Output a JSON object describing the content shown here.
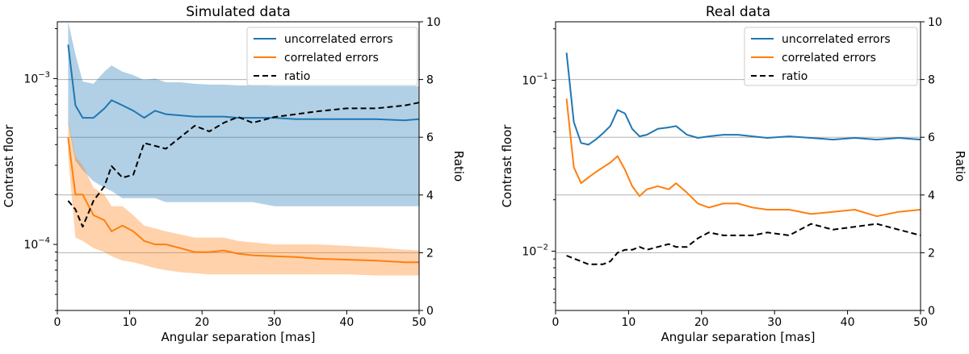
{
  "chart_data": [
    {
      "type": "line",
      "title": "Simulated data",
      "xlabel": "Angular separation [mas]",
      "ylabel": "Contrast floor",
      "y2label": "Ratio",
      "xlim": [
        0,
        50
      ],
      "ylim": [
        4e-05,
        0.0022
      ],
      "yscale": "log",
      "y2lim": [
        0,
        10
      ],
      "x_ticks": [
        "0",
        "10",
        "20",
        "30",
        "40",
        "50"
      ],
      "y_ticks": [
        {
          "value": 0.001,
          "base": "10",
          "exp": "−3"
        },
        {
          "value": 0.0001,
          "base": "10",
          "exp": "−4"
        }
      ],
      "y2_ticks": [
        "0",
        "2",
        "4",
        "6",
        "8",
        "10"
      ],
      "grid": "y2-major",
      "legend_position": "top-right",
      "series": [
        {
          "name": "uncorrelated errors",
          "color": "#1f77b4",
          "axis": "left",
          "x": [
            1.5,
            2.5,
            3.5,
            5,
            6.5,
            7.5,
            9,
            10.5,
            12,
            13.5,
            15,
            17,
            19,
            21,
            23,
            25,
            27,
            30,
            33,
            36,
            40,
            44,
            48,
            50
          ],
          "values": [
            0.0016,
            0.00069,
            0.00058,
            0.00058,
            0.00066,
            0.00074,
            0.00069,
            0.00064,
            0.00058,
            0.00064,
            0.00061,
            0.0006,
            0.00059,
            0.00059,
            0.00059,
            0.00058,
            0.00058,
            0.00058,
            0.00057,
            0.00057,
            0.00057,
            0.00057,
            0.00056,
            0.00057
          ],
          "band_upper": [
            0.0022,
            0.0014,
            0.00096,
            0.00093,
            0.0011,
            0.0012,
            0.0011,
            0.00105,
            0.00098,
            0.001,
            0.00095,
            0.00095,
            0.00093,
            0.00092,
            0.00092,
            0.00091,
            0.00091,
            0.0009,
            0.0009,
            0.0009,
            0.0009,
            0.0009,
            0.0009,
            0.0009
          ],
          "band_lower": [
            0.00054,
            0.00032,
            0.00028,
            0.00024,
            0.00022,
            0.00021,
            0.00019,
            0.00019,
            0.00019,
            0.00019,
            0.00018,
            0.00018,
            0.00018,
            0.00018,
            0.00018,
            0.00018,
            0.00018,
            0.00017,
            0.00017,
            0.00017,
            0.00017,
            0.00017,
            0.00017,
            0.00017
          ]
        },
        {
          "name": "correlated errors",
          "color": "#ff7f0e",
          "axis": "left",
          "x": [
            1.5,
            2.5,
            3.5,
            5,
            6.5,
            7.5,
            9,
            10.5,
            12,
            13.5,
            15,
            17,
            19,
            21,
            23,
            25,
            27,
            30,
            33,
            36,
            40,
            44,
            48,
            50
          ],
          "values": [
            0.00044,
            0.0002,
            0.0002,
            0.00015,
            0.00014,
            0.00012,
            0.00013,
            0.00012,
            0.000105,
            0.0001,
            0.0001,
            9.5e-05,
            9e-05,
            9e-05,
            9.2e-05,
            8.8e-05,
            8.6e-05,
            8.5e-05,
            8.4e-05,
            8.2e-05,
            8.1e-05,
            8e-05,
            7.8e-05,
            7.8e-05
          ],
          "band_upper": [
            0.00056,
            0.00034,
            0.0003,
            0.00022,
            0.0002,
            0.00017,
            0.00017,
            0.00015,
            0.00013,
            0.000125,
            0.00012,
            0.000115,
            0.00011,
            0.00011,
            0.00011,
            0.000105,
            0.000103,
            0.0001,
            0.0001,
            0.0001,
            9.8e-05,
            9.6e-05,
            9.3e-05,
            9.2e-05
          ],
          "band_lower": [
            0.00034,
            0.00011,
            0.000105,
            9.5e-05,
            9e-05,
            8.5e-05,
            8e-05,
            7.8e-05,
            7.5e-05,
            7.2e-05,
            7e-05,
            6.8e-05,
            6.7e-05,
            6.6e-05,
            6.6e-05,
            6.6e-05,
            6.6e-05,
            6.6e-05,
            6.6e-05,
            6.6e-05,
            6.6e-05,
            6.5e-05,
            6.5e-05,
            6.5e-05
          ]
        },
        {
          "name": "ratio",
          "color": "#000000",
          "dash": "dashed",
          "axis": "right",
          "x": [
            1.5,
            2.5,
            3.5,
            5,
            6.5,
            7.5,
            9,
            10.5,
            12,
            13.5,
            15,
            17,
            19,
            21,
            23,
            25,
            27,
            30,
            33,
            36,
            40,
            44,
            48,
            50
          ],
          "values": [
            3.8,
            3.5,
            2.9,
            3.8,
            4.3,
            5.0,
            4.6,
            4.7,
            5.8,
            5.7,
            5.6,
            6.0,
            6.4,
            6.2,
            6.5,
            6.7,
            6.5,
            6.7,
            6.8,
            6.9,
            7.0,
            7.0,
            7.1,
            7.2
          ]
        }
      ]
    },
    {
      "type": "line",
      "title": "Real data",
      "xlabel": "Angular separation [mas]",
      "ylabel": "Contrast floor",
      "y2label": "Ratio",
      "xlim": [
        0,
        50
      ],
      "ylim": [
        0.0045,
        0.22
      ],
      "yscale": "log",
      "y2lim": [
        0,
        10
      ],
      "x_ticks": [
        "0",
        "10",
        "20",
        "30",
        "40",
        "50"
      ],
      "y_ticks": [
        {
          "value": 0.1,
          "base": "10",
          "exp": "−1"
        },
        {
          "value": 0.01,
          "base": "10",
          "exp": "−2"
        }
      ],
      "y2_ticks": [
        "0",
        "2",
        "4",
        "6",
        "8",
        "10"
      ],
      "grid": "y2-major",
      "legend_position": "top-right",
      "series": [
        {
          "name": "uncorrelated errors",
          "color": "#1f77b4",
          "axis": "left",
          "x": [
            1.5,
            2.5,
            3.5,
            4.5,
            5.5,
            6.5,
            7.5,
            8.5,
            9.5,
            10.5,
            11.5,
            12.5,
            14,
            15.5,
            16.5,
            18,
            19.5,
            21,
            23,
            25,
            27,
            29,
            32,
            35,
            38,
            41,
            44,
            47,
            50
          ],
          "values": [
            0.145,
            0.057,
            0.043,
            0.042,
            0.045,
            0.049,
            0.054,
            0.067,
            0.064,
            0.052,
            0.047,
            0.048,
            0.052,
            0.053,
            0.054,
            0.048,
            0.046,
            0.047,
            0.048,
            0.048,
            0.047,
            0.046,
            0.047,
            0.046,
            0.045,
            0.046,
            0.045,
            0.046,
            0.045
          ]
        },
        {
          "name": "correlated errors",
          "color": "#ff7f0e",
          "axis": "left",
          "x": [
            1.5,
            2.5,
            3.5,
            4.5,
            5.5,
            6.5,
            7.5,
            8.5,
            9.5,
            10.5,
            11.5,
            12.5,
            14,
            15.5,
            16.5,
            18,
            19.5,
            21,
            23,
            25,
            27,
            29,
            32,
            35,
            38,
            41,
            44,
            47,
            50
          ],
          "values": [
            0.078,
            0.031,
            0.025,
            0.027,
            0.029,
            0.031,
            0.033,
            0.036,
            0.03,
            0.024,
            0.021,
            0.023,
            0.024,
            0.023,
            0.025,
            0.022,
            0.019,
            0.018,
            0.019,
            0.019,
            0.018,
            0.0175,
            0.0175,
            0.0165,
            0.017,
            0.0175,
            0.016,
            0.017,
            0.0175
          ]
        },
        {
          "name": "ratio",
          "color": "#000000",
          "dash": "dashed",
          "axis": "right",
          "x": [
            1.5,
            2.5,
            3.5,
            4.5,
            5.5,
            6.5,
            7.5,
            8.5,
            9.5,
            10.5,
            11.5,
            12.5,
            14,
            15.5,
            16.5,
            18,
            19.5,
            21,
            23,
            25,
            27,
            29,
            32,
            35,
            38,
            41,
            44,
            47,
            50
          ],
          "values": [
            1.9,
            1.8,
            1.7,
            1.6,
            1.6,
            1.6,
            1.7,
            2.0,
            2.1,
            2.1,
            2.2,
            2.1,
            2.2,
            2.3,
            2.2,
            2.2,
            2.5,
            2.7,
            2.6,
            2.6,
            2.6,
            2.7,
            2.6,
            3.0,
            2.8,
            2.9,
            3.0,
            2.8,
            2.6
          ]
        }
      ]
    }
  ]
}
